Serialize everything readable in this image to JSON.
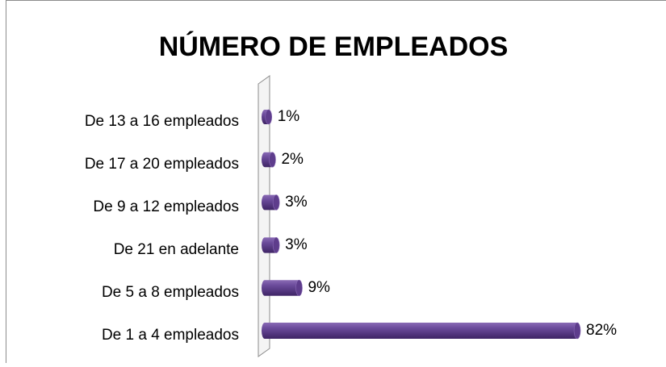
{
  "chart_data": {
    "type": "bar",
    "orientation": "horizontal",
    "title": "NÚMERO DE EMPLEADOS",
    "categories": [
      "De 13 a 16 empleados",
      "De 17 a 20 empleados",
      "De 9 a 12 empleados",
      "De 21 en adelante ",
      "De 5 a 8 empleados",
      "De 1 a 4 empleados"
    ],
    "values": [
      1,
      2,
      3,
      3,
      9,
      82
    ],
    "value_labels": [
      "1%",
      "2%",
      "3%",
      "3%",
      "9%",
      "82%"
    ],
    "color": "#5e3d8c"
  }
}
